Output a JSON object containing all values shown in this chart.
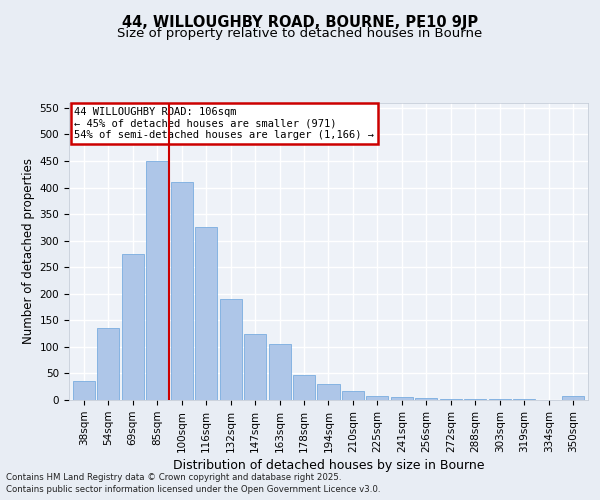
{
  "title1": "44, WILLOUGHBY ROAD, BOURNE, PE10 9JP",
  "title2": "Size of property relative to detached houses in Bourne",
  "xlabel": "Distribution of detached houses by size in Bourne",
  "ylabel": "Number of detached properties",
  "categories": [
    "38sqm",
    "54sqm",
    "69sqm",
    "85sqm",
    "100sqm",
    "116sqm",
    "132sqm",
    "147sqm",
    "163sqm",
    "178sqm",
    "194sqm",
    "210sqm",
    "225sqm",
    "241sqm",
    "256sqm",
    "272sqm",
    "288sqm",
    "303sqm",
    "319sqm",
    "334sqm",
    "350sqm"
  ],
  "values": [
    35,
    135,
    275,
    450,
    410,
    325,
    190,
    125,
    105,
    47,
    30,
    17,
    8,
    5,
    3,
    2,
    1,
    1,
    1,
    0,
    7
  ],
  "bar_color": "#aec6e8",
  "bar_edge_color": "#7aade0",
  "vline_x": 3.5,
  "vline_color": "#cc0000",
  "annotation_box_text": "44 WILLOUGHBY ROAD: 106sqm\n← 45% of detached houses are smaller (971)\n54% of semi-detached houses are larger (1,166) →",
  "box_edge_color": "#cc0000",
  "footnote1": "Contains HM Land Registry data © Crown copyright and database right 2025.",
  "footnote2": "Contains public sector information licensed under the Open Government Licence v3.0.",
  "ylim": [
    0,
    560
  ],
  "yticks": [
    0,
    50,
    100,
    150,
    200,
    250,
    300,
    350,
    400,
    450,
    500,
    550
  ],
  "bg_color": "#e8edf4",
  "plot_bg_color": "#eef2f8",
  "grid_color": "#ffffff",
  "title_fontsize": 10.5,
  "subtitle_fontsize": 9.5,
  "tick_fontsize": 7.5,
  "ylabel_fontsize": 8.5,
  "xlabel_fontsize": 9
}
